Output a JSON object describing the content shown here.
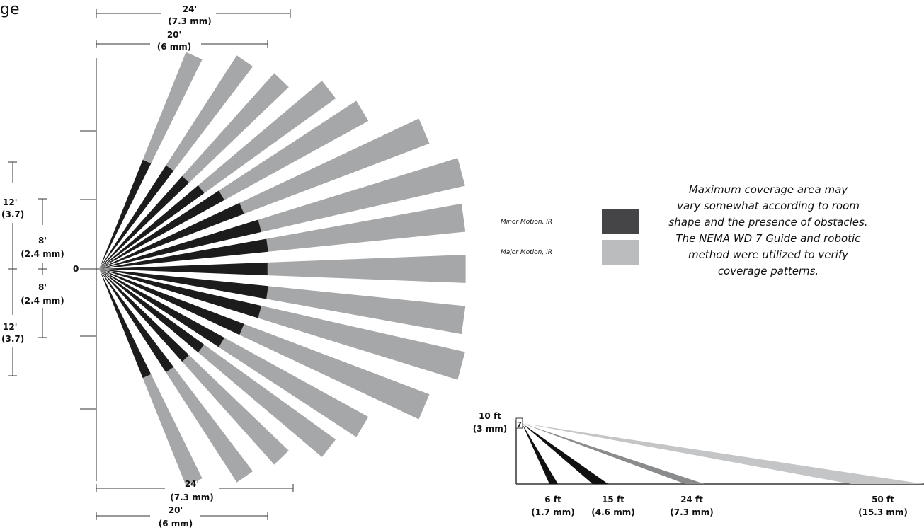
{
  "corner_text": "ge",
  "top_dims": {
    "outer": [
      "24'",
      "(7.3 mm)"
    ],
    "inner": [
      "20'",
      "(6 mm)"
    ]
  },
  "bottom_dims": {
    "outer": [
      "24'",
      "(7.3 mm)"
    ],
    "inner": [
      "20'",
      "(6 mm)"
    ]
  },
  "left_dims": {
    "upper_outer": [
      "12'",
      "(3.7)"
    ],
    "upper_inner": [
      "8'",
      "(2.4 mm)"
    ],
    "lower_inner": [
      "8'",
      "(2.4 mm)"
    ],
    "lower_outer": [
      "12'",
      "(3.7)"
    ]
  },
  "origin_label": "0",
  "legend": {
    "minor": {
      "label": "Minor Motion, IR",
      "color": "#454547"
    },
    "major": {
      "label": "Major Motion, IR",
      "color": "#bbbcbe"
    }
  },
  "note_lines": [
    "Maximum coverage area may",
    "vary somewhat according to room",
    "shape and the presence of obstacles.",
    "The NEMA WD 7 Guide and robotic",
    "method were utilized to verify",
    "coverage patterns."
  ],
  "side_view": {
    "height_label": [
      "10 ft",
      "(3 mm)"
    ],
    "sensor_icon_text": "7",
    "distances": [
      {
        "label": [
          "6 ft",
          "(1.7 mm)"
        ],
        "color": "#111111"
      },
      {
        "label": [
          "15 ft",
          "(4.6 mm)"
        ],
        "color": "#111111"
      },
      {
        "label": [
          "24 ft",
          "(7.3 mm)"
        ],
        "color": "#8a8b8d"
      },
      {
        "label": [
          "50 ft",
          "(15.3 mm)"
        ],
        "color": "#c4c5c7"
      }
    ]
  },
  "colors": {
    "minor_fan": "#1c1c1c",
    "major_fan": "#a6a7a9",
    "line": "#333333"
  }
}
